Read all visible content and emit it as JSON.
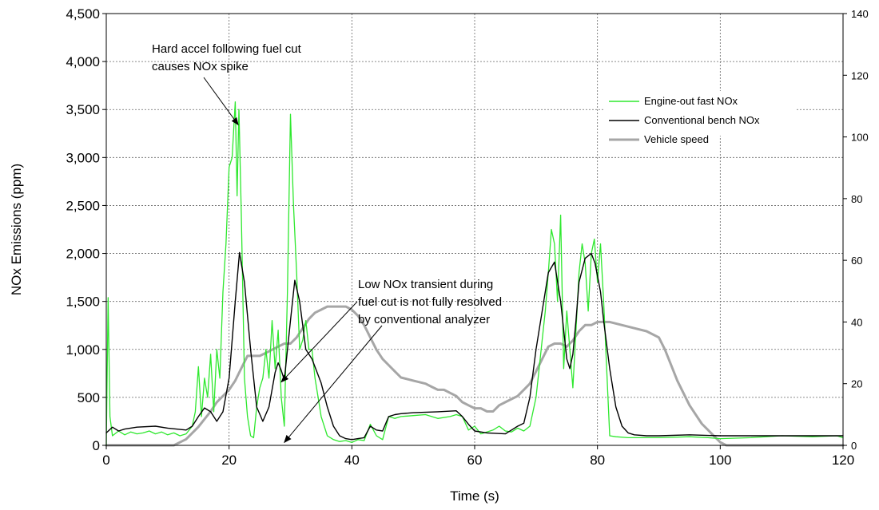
{
  "chart_data": {
    "type": "line",
    "title": "",
    "xlabel": "Time (s)",
    "ylabel": "NOx Emissions (ppm)",
    "ylabel_right": "",
    "xlim": [
      0,
      120
    ],
    "ylim": [
      0,
      4500
    ],
    "ylim_right": [
      0,
      140
    ],
    "x_ticks": [
      0,
      20,
      40,
      60,
      80,
      100,
      120
    ],
    "y_ticks": [
      0,
      500,
      1000,
      1500,
      2000,
      2500,
      3000,
      3500,
      4000,
      4500
    ],
    "y_tick_labels": [
      "0",
      "500",
      "1,000",
      "1,500",
      "2,000",
      "2,500",
      "3,000",
      "3,500",
      "4,000",
      "4,500"
    ],
    "y_right_ticks": [
      0,
      20,
      40,
      60,
      80,
      100,
      120,
      140
    ],
    "grid": true,
    "legend": {
      "placement": "top-right"
    },
    "colors": {
      "fast_nox": "#2ee82e",
      "bench_nox": "#000000",
      "speed": "#a6a6a6"
    },
    "series": [
      {
        "name": "Engine-out fast NOx",
        "axis": "left",
        "x": [
          0,
          0.3,
          0.6,
          1,
          2,
          3,
          4,
          5,
          6,
          7,
          8,
          9,
          10,
          11,
          12,
          13,
          14,
          14.5,
          15,
          15.5,
          16,
          16.5,
          17,
          17.5,
          18,
          18.5,
          19,
          19.5,
          20,
          20.5,
          21,
          21.3,
          21.6,
          22,
          22.5,
          23,
          23.5,
          24,
          24.5,
          25,
          25.5,
          26,
          26.5,
          27,
          27.5,
          28,
          28.5,
          29,
          29.5,
          30,
          30.5,
          31,
          31.5,
          32,
          32.5,
          33,
          33.5,
          34,
          34.5,
          35,
          36,
          37,
          38,
          39,
          40,
          41,
          42,
          43,
          44,
          45,
          46,
          47,
          48,
          50,
          52,
          54,
          56,
          57,
          58,
          59,
          60,
          61,
          62,
          63,
          64,
          65,
          66,
          67,
          68,
          69,
          70,
          70.5,
          71,
          71.5,
          72,
          72.5,
          73,
          73.5,
          74,
          74.5,
          75,
          75.5,
          76,
          76.5,
          77,
          77.5,
          78,
          78.5,
          79,
          79.5,
          80,
          80.5,
          81,
          81.5,
          82,
          83,
          85,
          90,
          95,
          98,
          100,
          105,
          110,
          115,
          119,
          120
        ],
        "values": [
          0,
          1540,
          300,
          100,
          150,
          110,
          140,
          120,
          130,
          150,
          120,
          140,
          110,
          130,
          100,
          120,
          200,
          350,
          820,
          300,
          700,
          500,
          950,
          350,
          1000,
          700,
          1600,
          2100,
          2900,
          3000,
          3580,
          2600,
          3500,
          2400,
          700,
          300,
          100,
          80,
          400,
          600,
          700,
          1000,
          700,
          1300,
          800,
          1200,
          500,
          200,
          1600,
          3450,
          2500,
          1800,
          1000,
          1100,
          1300,
          1000,
          1000,
          700,
          500,
          300,
          100,
          60,
          40,
          50,
          30,
          60,
          50,
          220,
          100,
          60,
          300,
          280,
          300,
          310,
          320,
          280,
          300,
          320,
          300,
          160,
          200,
          120,
          140,
          160,
          200,
          150,
          140,
          180,
          150,
          200,
          500,
          800,
          1100,
          1400,
          1800,
          2250,
          2100,
          1500,
          2400,
          800,
          1400,
          1000,
          600,
          1200,
          1800,
          2100,
          1900,
          1400,
          2000,
          2150,
          1700,
          2100,
          1500,
          800,
          100,
          90,
          80,
          80,
          90,
          80,
          70,
          80,
          100,
          90,
          100,
          80
        ],
        "color": "#2ee82e"
      },
      {
        "name": "Conventional bench NOx",
        "axis": "left",
        "x": [
          0,
          1,
          2,
          3,
          5,
          8,
          10,
          13,
          14,
          15,
          16,
          17,
          18,
          19,
          20,
          21,
          21.7,
          22.5,
          23.5,
          24.5,
          25.5,
          26.5,
          27.5,
          28,
          28.5,
          29,
          30,
          30.7,
          31.5,
          32.5,
          33.5,
          35,
          36,
          37,
          38,
          39,
          40,
          41,
          42,
          43,
          44,
          45,
          46,
          47,
          48,
          50,
          54,
          57,
          58,
          59,
          60,
          62,
          65,
          66,
          67,
          68,
          69,
          70,
          71,
          72,
          73,
          74,
          75,
          75.5,
          76,
          76.5,
          77,
          78,
          79,
          79.6,
          80.5,
          81,
          82,
          83,
          84,
          85,
          86,
          88,
          90,
          95,
          100,
          105,
          110,
          115,
          120
        ],
        "values": [
          130,
          190,
          150,
          170,
          190,
          200,
          180,
          160,
          200,
          300,
          390,
          350,
          250,
          350,
          700,
          1500,
          2010,
          1700,
          1000,
          400,
          250,
          400,
          760,
          860,
          780,
          680,
          1300,
          1720,
          1500,
          1000,
          900,
          650,
          400,
          200,
          100,
          70,
          60,
          70,
          80,
          200,
          160,
          150,
          300,
          320,
          330,
          340,
          350,
          360,
          300,
          220,
          150,
          130,
          120,
          160,
          200,
          230,
          500,
          1000,
          1400,
          1800,
          1910,
          1500,
          900,
          800,
          950,
          1300,
          1700,
          1950,
          2000,
          1900,
          1600,
          1300,
          800,
          400,
          200,
          130,
          110,
          100,
          100,
          110,
          100,
          100,
          100,
          100,
          100
        ],
        "color": "#000000"
      },
      {
        "name": "Vehicle speed",
        "axis": "right",
        "x": [
          0,
          11,
          13,
          15,
          17,
          18,
          19,
          20,
          21,
          22,
          23,
          24,
          25,
          26,
          27,
          28,
          29,
          30,
          31,
          32,
          33,
          34,
          35,
          36,
          37,
          38,
          39,
          40,
          41,
          42,
          43,
          44,
          45,
          46,
          47,
          48,
          50,
          52,
          53,
          54,
          55,
          56,
          57,
          58,
          59,
          60,
          61,
          62,
          63,
          64,
          65,
          66,
          67,
          68,
          69,
          70,
          71,
          72,
          73,
          74,
          75,
          76,
          77,
          78,
          79,
          80,
          81,
          82,
          84,
          86,
          88,
          90,
          91,
          92,
          93,
          94,
          95,
          96,
          97,
          98,
          99,
          100,
          101,
          102,
          103,
          105,
          110,
          115,
          120
        ],
        "values": [
          0,
          0,
          2,
          6,
          11,
          14,
          16,
          18,
          21,
          25,
          29,
          29,
          29,
          30,
          31,
          32,
          33,
          33,
          35,
          38,
          41,
          43,
          44,
          45,
          45,
          45,
          45,
          44,
          42,
          39,
          35,
          31,
          28,
          26,
          24,
          22,
          21,
          20,
          19,
          18,
          18,
          17,
          16,
          14,
          13,
          12,
          12,
          11,
          11,
          13,
          14,
          15,
          16,
          18,
          20,
          24,
          28,
          32,
          33,
          33,
          32,
          34,
          37,
          39,
          39,
          40,
          40,
          40,
          39,
          38,
          37,
          35,
          31,
          26,
          21,
          17,
          13,
          10,
          7,
          5,
          3,
          1,
          0,
          0,
          0,
          0,
          0,
          0,
          0
        ],
        "color": "#a6a6a6"
      }
    ],
    "annotations": [
      {
        "text_lines": [
          "Hard accel following fuel cut",
          "causes NOx spike"
        ],
        "points_to": [
          {
            "x": 21.5,
            "y": 3340
          }
        ]
      },
      {
        "text_lines": [
          "Low NOx transient during",
          "fuel cut is not fully resolved",
          "by conventional analyzer"
        ],
        "points_to": [
          {
            "x": 28.5,
            "y": 660
          },
          {
            "x": 29,
            "y": 30
          }
        ]
      }
    ]
  }
}
